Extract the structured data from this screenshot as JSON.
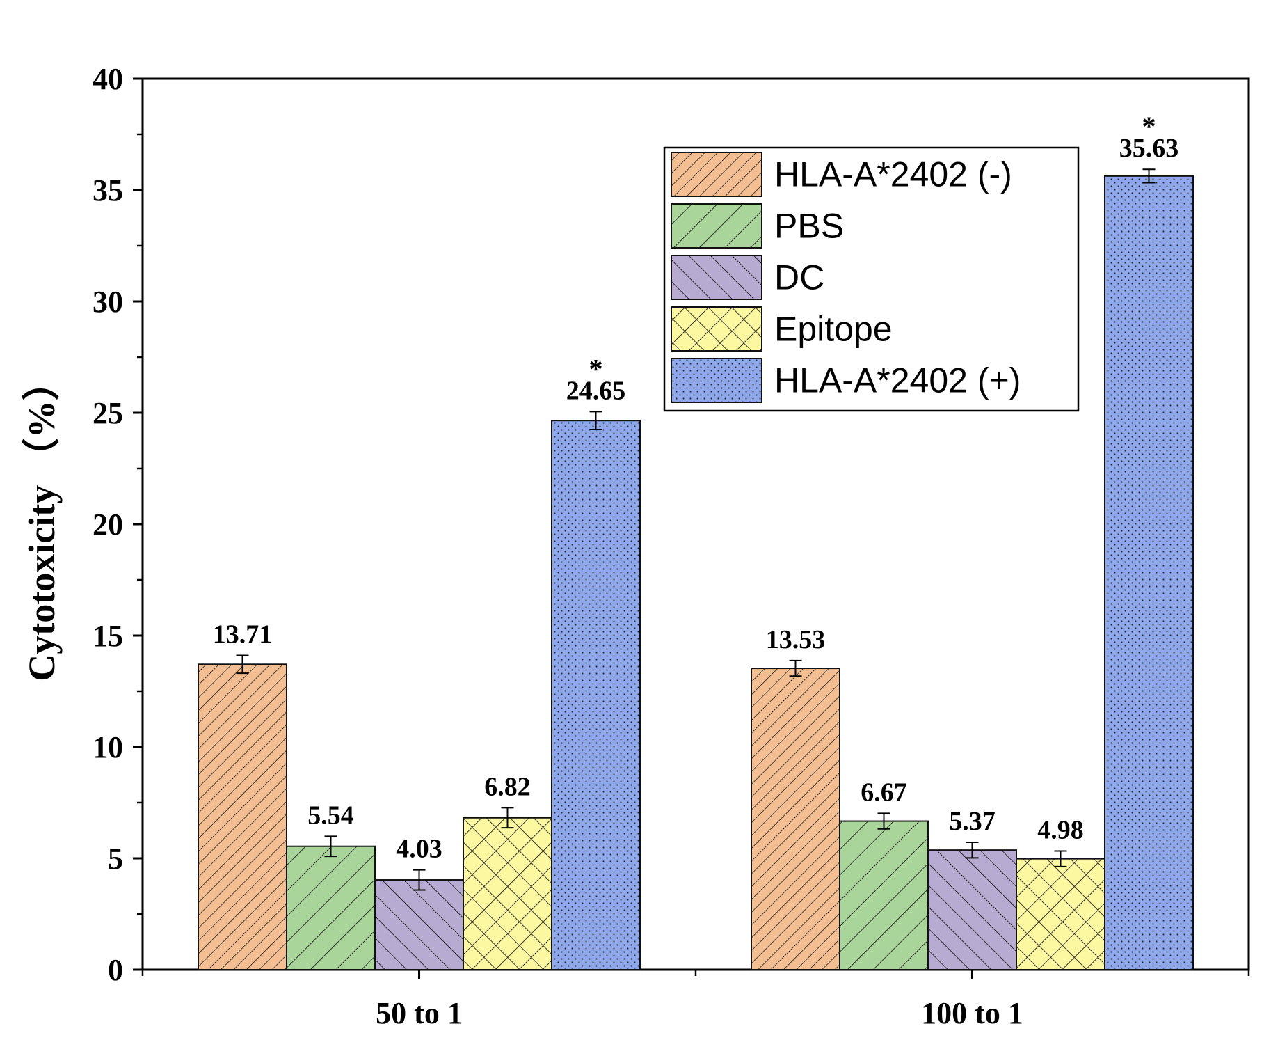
{
  "chart_data": {
    "type": "bar",
    "title": "",
    "xlabel": "",
    "ylabel": "Cytotoxicity （%）",
    "ylim": [
      0,
      40
    ],
    "yticks": [
      "0",
      "5",
      "10",
      "15",
      "20",
      "25",
      "30",
      "35",
      "40"
    ],
    "categories": [
      "50 to 1",
      "100 to 1"
    ],
    "series": [
      {
        "name": "HLA-A*2402 (-)",
        "values": [
          13.71,
          13.53
        ],
        "labels": [
          "13.71",
          "13.53"
        ],
        "errors": [
          0.4,
          0.35
        ],
        "stars": [
          "",
          ""
        ],
        "color": "#f3bf92",
        "pattern": "diag-fine"
      },
      {
        "name": "PBS",
        "values": [
          5.54,
          6.67
        ],
        "labels": [
          "5.54",
          "6.67"
        ],
        "errors": [
          0.45,
          0.35
        ],
        "stars": [
          "",
          ""
        ],
        "color": "#a9d59b",
        "pattern": "diag-wide"
      },
      {
        "name": "DC",
        "values": [
          4.03,
          5.37
        ],
        "labels": [
          "4.03",
          "5.37"
        ],
        "errors": [
          0.45,
          0.35
        ],
        "stars": [
          "",
          ""
        ],
        "color": "#b7abd2",
        "pattern": "backdiag"
      },
      {
        "name": "Epitope",
        "values": [
          6.82,
          4.98
        ],
        "labels": [
          "6.82",
          "4.98"
        ],
        "errors": [
          0.45,
          0.35
        ],
        "stars": [
          "",
          ""
        ],
        "color": "#fbf8a1",
        "pattern": "crosshatch"
      },
      {
        "name": "HLA-A*2402 (+)",
        "values": [
          24.65,
          35.63
        ],
        "labels": [
          "24.65",
          "35.63"
        ],
        "errors": [
          0.4,
          0.3
        ],
        "stars": [
          "*",
          "*"
        ],
        "color": "#8fa8ec",
        "pattern": "dots"
      }
    ],
    "legend_position": "top-right",
    "grid": false
  }
}
